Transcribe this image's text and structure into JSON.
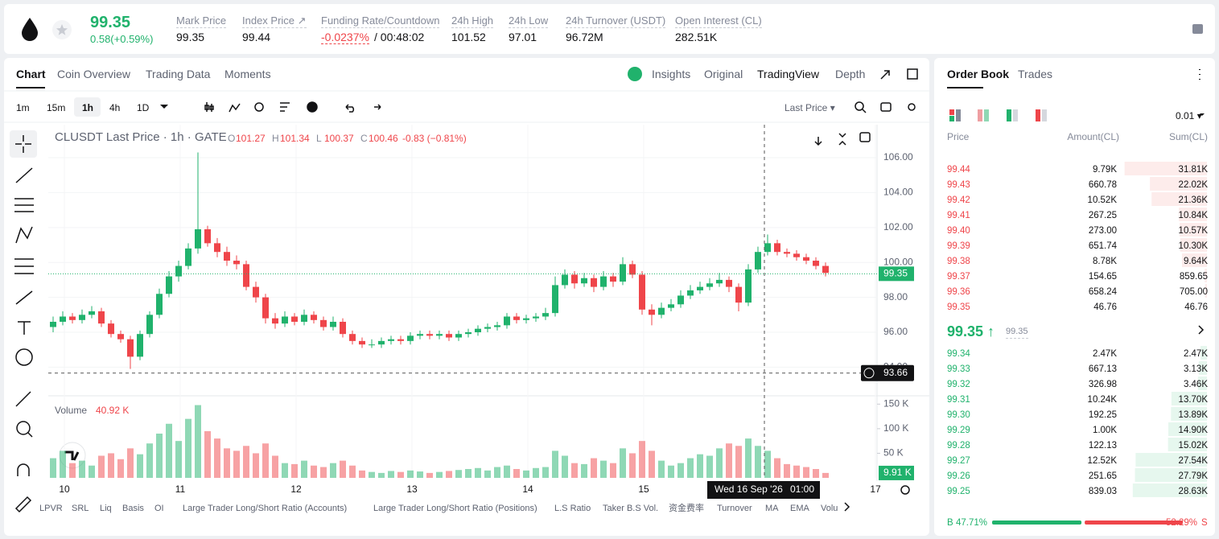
{
  "header": {
    "price": "99.35",
    "change": "0.58(+0.59%)",
    "stats": [
      {
        "label": "Mark Price",
        "value": "99.35"
      },
      {
        "label": "Index Price ↗",
        "value": "99.44"
      },
      {
        "label": "Funding Rate/Countdown",
        "value": "-0.0237%",
        "extra": "/ 00:48:02"
      },
      {
        "label": "24h High",
        "value": "101.52"
      },
      {
        "label": "24h Low",
        "value": "97.01"
      },
      {
        "label": "24h Turnover (USDT)",
        "value": "96.72M"
      },
      {
        "label": "Open Interest (CL)",
        "value": "282.51K"
      }
    ]
  },
  "tabs": {
    "left": [
      "Chart",
      "Coin Overview",
      "Trading Data",
      "Moments"
    ],
    "right": [
      "Insights",
      "Original",
      "TradingView",
      "Depth"
    ]
  },
  "toolbar": {
    "intervals": [
      "1m",
      "15m",
      "1h",
      "4h",
      "1D"
    ],
    "price_type": "Last Price ▾"
  },
  "chart_data": {
    "type": "candlestick",
    "title": "CLUSDT Last Price · 1h · GATE",
    "legend": [
      [
        "O",
        "101.27"
      ],
      [
        "H",
        "101.34"
      ],
      [
        "L",
        "100.37"
      ],
      [
        "C",
        "100.46"
      ]
    ],
    "change": "-0.83 (−0.81%)",
    "up_color": "#20b26c",
    "down_color": "#ef454a",
    "candles": [
      [
        96.3,
        96.9,
        96.0,
        96.6
      ],
      [
        96.6,
        97.2,
        96.4,
        96.9
      ],
      [
        96.9,
        97.1,
        96.5,
        96.7
      ],
      [
        96.7,
        97.3,
        96.5,
        97.0
      ],
      [
        97.0,
        97.5,
        96.8,
        97.2
      ],
      [
        97.2,
        97.4,
        96.3,
        96.5
      ],
      [
        96.5,
        96.7,
        95.7,
        95.9
      ],
      [
        95.9,
        96.1,
        95.4,
        95.6
      ],
      [
        95.6,
        95.8,
        93.9,
        94.6
      ],
      [
        94.6,
        96.1,
        94.4,
        95.9
      ],
      [
        95.9,
        97.2,
        95.7,
        97.0
      ],
      [
        97.0,
        98.5,
        96.8,
        98.2
      ],
      [
        98.2,
        99.5,
        98.0,
        99.2
      ],
      [
        99.2,
        100.1,
        98.9,
        99.8
      ],
      [
        99.8,
        101.1,
        99.6,
        100.8
      ],
      [
        100.8,
        106.3,
        100.5,
        101.9
      ],
      [
        101.9,
        102.1,
        100.9,
        101.1
      ],
      [
        101.1,
        101.4,
        100.3,
        100.6
      ],
      [
        100.6,
        100.9,
        99.8,
        100.1
      ],
      [
        100.1,
        100.4,
        99.6,
        99.9
      ],
      [
        99.9,
        100.1,
        98.4,
        98.6
      ],
      [
        98.6,
        98.9,
        97.7,
        98.0
      ],
      [
        98.0,
        98.2,
        96.5,
        96.8
      ],
      [
        96.8,
        97.1,
        96.2,
        96.5
      ],
      [
        96.5,
        97.2,
        96.3,
        96.9
      ],
      [
        96.9,
        97.1,
        96.4,
        96.6
      ],
      [
        96.6,
        97.3,
        96.4,
        97.0
      ],
      [
        97.0,
        97.2,
        96.5,
        96.7
      ],
      [
        96.7,
        96.9,
        96.1,
        96.3
      ],
      [
        96.3,
        96.9,
        96.1,
        96.6
      ],
      [
        96.6,
        96.8,
        95.7,
        95.9
      ],
      [
        95.9,
        96.1,
        95.3,
        95.5
      ],
      [
        95.5,
        95.7,
        95.1,
        95.3
      ],
      [
        95.3,
        95.6,
        95.1,
        95.3
      ],
      [
        95.3,
        95.7,
        95.1,
        95.5
      ],
      [
        95.5,
        95.8,
        95.3,
        95.6
      ],
      [
        95.6,
        95.8,
        95.3,
        95.5
      ],
      [
        95.5,
        96.0,
        95.3,
        95.8
      ],
      [
        95.8,
        96.1,
        95.6,
        95.9
      ],
      [
        95.9,
        96.1,
        95.6,
        95.8
      ],
      [
        95.8,
        96.1,
        95.6,
        95.9
      ],
      [
        95.9,
        96.1,
        95.5,
        95.7
      ],
      [
        95.7,
        96.1,
        95.5,
        95.9
      ],
      [
        95.9,
        96.2,
        95.7,
        96.0
      ],
      [
        96.0,
        96.4,
        95.8,
        96.2
      ],
      [
        96.2,
        96.5,
        96.0,
        96.3
      ],
      [
        96.3,
        96.6,
        96.1,
        96.4
      ],
      [
        96.4,
        97.1,
        96.2,
        96.9
      ],
      [
        96.9,
        97.1,
        96.5,
        96.7
      ],
      [
        96.7,
        97.0,
        96.5,
        96.8
      ],
      [
        96.8,
        97.1,
        96.6,
        96.9
      ],
      [
        96.9,
        97.4,
        96.7,
        97.1
      ],
      [
        97.1,
        99.2,
        96.9,
        98.7
      ],
      [
        98.7,
        99.6,
        98.5,
        99.3
      ],
      [
        99.3,
        99.5,
        98.5,
        98.8
      ],
      [
        98.8,
        99.4,
        98.6,
        99.1
      ],
      [
        99.1,
        99.3,
        98.3,
        98.6
      ],
      [
        98.6,
        99.5,
        98.4,
        99.2
      ],
      [
        99.2,
        99.4,
        98.6,
        98.9
      ],
      [
        98.9,
        100.3,
        98.7,
        99.9
      ],
      [
        99.9,
        100.1,
        99.1,
        99.3
      ],
      [
        99.3,
        99.5,
        97.0,
        97.3
      ],
      [
        97.3,
        97.6,
        96.4,
        97.0
      ],
      [
        97.0,
        97.7,
        96.8,
        97.4
      ],
      [
        97.4,
        97.9,
        97.2,
        97.6
      ],
      [
        97.6,
        98.4,
        97.4,
        98.1
      ],
      [
        98.1,
        98.7,
        97.9,
        98.4
      ],
      [
        98.4,
        98.9,
        98.2,
        98.6
      ],
      [
        98.6,
        99.1,
        98.4,
        98.8
      ],
      [
        98.8,
        99.4,
        98.6,
        99.0
      ],
      [
        99.0,
        99.2,
        98.3,
        98.6
      ],
      [
        98.6,
        98.8,
        97.2,
        97.7
      ],
      [
        97.7,
        99.9,
        97.5,
        99.6
      ],
      [
        99.6,
        100.9,
        99.4,
        100.6
      ],
      [
        100.6,
        101.6,
        100.4,
        101.1
      ],
      [
        101.1,
        101.3,
        100.4,
        100.6
      ],
      [
        100.6,
        100.8,
        100.3,
        100.5
      ],
      [
        100.5,
        100.7,
        100.1,
        100.3
      ],
      [
        100.3,
        100.5,
        99.9,
        100.1
      ],
      [
        100.1,
        100.3,
        99.6,
        99.8
      ],
      [
        99.8,
        100.0,
        99.2,
        99.4
      ]
    ],
    "volumes": [
      40,
      55,
      30,
      35,
      25,
      45,
      50,
      38,
      60,
      48,
      70,
      90,
      110,
      75,
      120,
      148,
      95,
      80,
      60,
      55,
      65,
      50,
      70,
      45,
      30,
      28,
      35,
      25,
      22,
      30,
      35,
      25,
      15,
      12,
      10,
      14,
      12,
      15,
      13,
      10,
      12,
      14,
      16,
      18,
      20,
      15,
      22,
      25,
      18,
      15,
      20,
      22,
      55,
      45,
      30,
      28,
      40,
      35,
      30,
      60,
      50,
      75,
      55,
      35,
      25,
      30,
      40,
      48,
      45,
      60,
      70,
      65,
      80,
      65,
      55,
      40,
      28,
      25,
      22,
      18,
      10
    ],
    "ylim": [
      92.36,
      107.89
    ],
    "yticks": [
      {
        "value": 106,
        "label": "106.00"
      },
      {
        "value": 104,
        "label": "104.00"
      },
      {
        "value": 102,
        "label": "102.00"
      },
      {
        "value": 100,
        "label": "100.00"
      },
      {
        "value": 98,
        "label": "98.00"
      },
      {
        "value": 96,
        "label": "96.00"
      },
      {
        "value": 94,
        "label": "94.00"
      }
    ],
    "last_price": {
      "value": 99.35,
      "label": "99.35"
    },
    "crosshair_price": {
      "value": 93.66,
      "label": "93.66"
    },
    "volume_title": "Volume",
    "volume_legend": "40.92 K",
    "volume_ylim": [
      0,
      162
    ],
    "volume_ticks": [
      {
        "value": 150,
        "label": "150 K"
      },
      {
        "value": 100,
        "label": "100 K"
      },
      {
        "value": 50,
        "label": "50 K"
      }
    ],
    "volume_current": {
      "value": 9.91,
      "label": "9.91 K"
    },
    "x_labels": [
      "10",
      "11",
      "12",
      "13",
      "14",
      "15",
      "17"
    ],
    "crosshair_time": [
      "Wed 16 Sep '26",
      "01:00"
    ]
  },
  "indicators": [
    "LPVR",
    "SRL",
    "Liq",
    "Basis",
    "OI",
    "Large Trader Long/Short Ratio (Accounts)",
    "Large Trader Long/Short Ratio (Positions)",
    "L.S Ratio",
    "Taker B.S Vol.",
    "资金费率",
    "Turnover",
    "MA",
    "EMA",
    "Volu"
  ],
  "order_book": {
    "tabs": [
      "Order Book",
      "Trades"
    ],
    "precision": "0.01 ▾",
    "headers": [
      "Price",
      "Amount(CL)",
      "Sum(CL)"
    ],
    "asks": {
      "prices": [
        "99.44",
        "99.43",
        "99.42",
        "99.41",
        "99.40",
        "99.39",
        "99.38",
        "99.37",
        "99.36",
        "99.35"
      ],
      "amounts": [
        "9.79K",
        "660.78",
        "10.52K",
        "267.25",
        "273.00",
        "651.74",
        "8.78K",
        "154.65",
        "658.24",
        "46.76"
      ],
      "sums": [
        31.81,
        22.02,
        21.36,
        10.84,
        10.57,
        10.3,
        9.64,
        0.85965,
        0.705,
        0.04676
      ],
      "sum_labels": [
        "31.81K",
        "22.02K",
        "21.36K",
        "10.84K",
        "10.57K",
        "10.30K",
        "9.64K",
        "859.65",
        "705.00",
        "46.76"
      ]
    },
    "mid": {
      "price": "99.35 ↑",
      "mark": "99.35"
    },
    "bids": {
      "prices": [
        "99.34",
        "99.33",
        "99.32",
        "99.31",
        "99.30",
        "99.29",
        "99.28",
        "99.27",
        "99.26",
        "99.25"
      ],
      "amounts": [
        "2.47K",
        "667.13",
        "326.98",
        "10.24K",
        "192.25",
        "1.00K",
        "122.13",
        "12.52K",
        "251.65",
        "839.03"
      ],
      "sums": [
        2.47,
        3.13,
        3.46,
        13.7,
        13.89,
        14.9,
        15.02,
        27.54,
        27.79,
        28.63
      ],
      "sum_labels": [
        "2.47K",
        "3.13K",
        "3.46K",
        "13.70K",
        "13.89K",
        "14.90K",
        "15.02K",
        "27.54K",
        "27.79K",
        "28.63K"
      ]
    },
    "ratio": {
      "buy_tag": "B",
      "buy": 47.71,
      "buy_label": "47.71%",
      "sell": 52.29,
      "sell_label": "52.29%",
      "sell_tag": "S"
    }
  }
}
